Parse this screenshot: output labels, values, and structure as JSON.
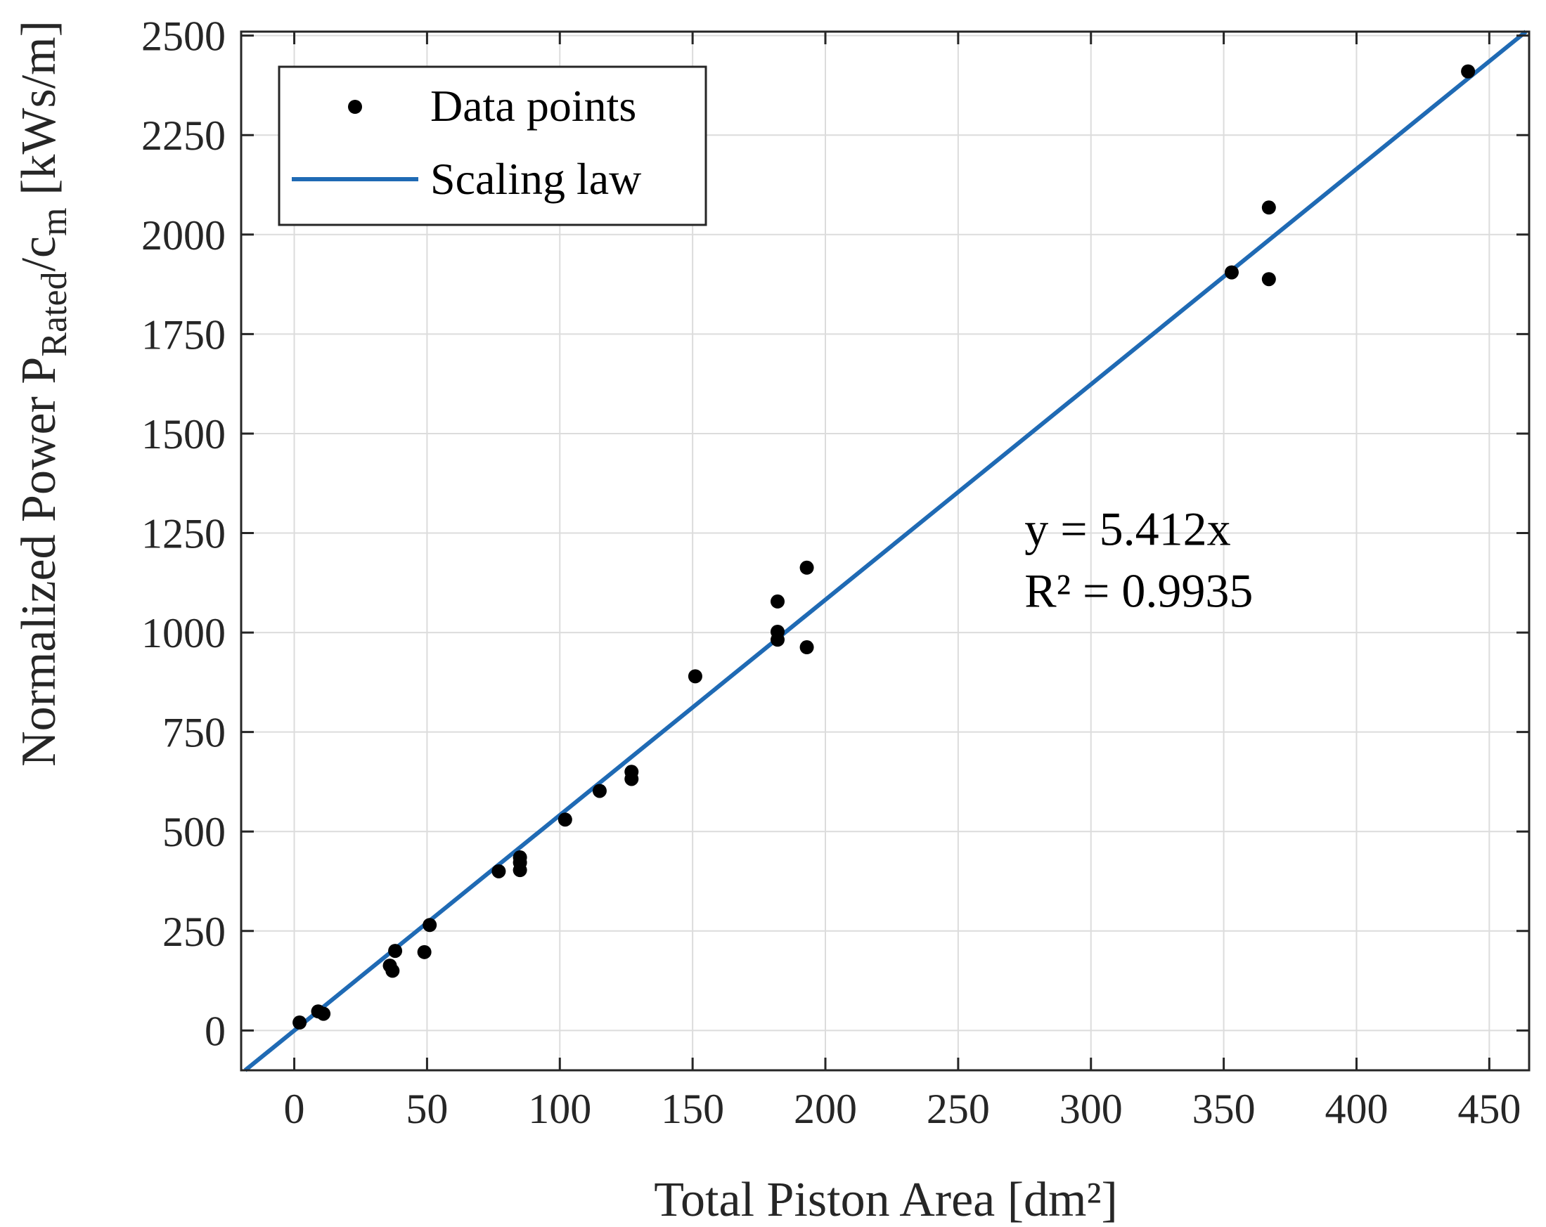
{
  "chart_data": {
    "type": "scatter",
    "title": "",
    "xlabel": "Total Piston Area [dm²]",
    "ylabel": {
      "main": "Normalized Power P",
      "subscript_1": "Rated",
      "slash": "/c",
      "subscript_2": "m",
      "unit": " [kWs/m]"
    },
    "xlim": [
      -20,
      465
    ],
    "ylim": [
      -100,
      2510
    ],
    "xticks": [
      0,
      50,
      100,
      150,
      200,
      250,
      300,
      350,
      400,
      450
    ],
    "yticks": [
      0,
      250,
      500,
      750,
      1000,
      1250,
      1500,
      1750,
      2000,
      2250,
      2500
    ],
    "grid": true,
    "series": [
      {
        "name": "Data points",
        "kind": "scatter",
        "color": "#000000",
        "points": [
          [
            2,
            20
          ],
          [
            9,
            48
          ],
          [
            11,
            42
          ],
          [
            36,
            163
          ],
          [
            37,
            150
          ],
          [
            38,
            200
          ],
          [
            49,
            197
          ],
          [
            51,
            265
          ],
          [
            77,
            400
          ],
          [
            85,
            403
          ],
          [
            85,
            422
          ],
          [
            85,
            435
          ],
          [
            102,
            530
          ],
          [
            115,
            602
          ],
          [
            127,
            632
          ],
          [
            127,
            650
          ],
          [
            151,
            890
          ],
          [
            182,
            1078
          ],
          [
            182,
            1002
          ],
          [
            182,
            982
          ],
          [
            193,
            1163
          ],
          [
            193,
            963
          ],
          [
            353,
            1905
          ],
          [
            367,
            2068
          ],
          [
            367,
            1888
          ],
          [
            442,
            2410
          ]
        ]
      },
      {
        "name": "Scaling law",
        "kind": "line",
        "color": "#1F6AB4",
        "slope": 5.412,
        "intercept": 0,
        "x_range": [
          -20,
          465
        ]
      }
    ],
    "legend": {
      "position": "top-left",
      "entries": [
        "Data points",
        "Scaling law"
      ]
    },
    "annotations": [
      {
        "text": "y = 5.412x",
        "x": 275,
        "y": 1220
      },
      {
        "text": "R² = 0.9935",
        "x": 275,
        "y": 1065
      }
    ]
  }
}
